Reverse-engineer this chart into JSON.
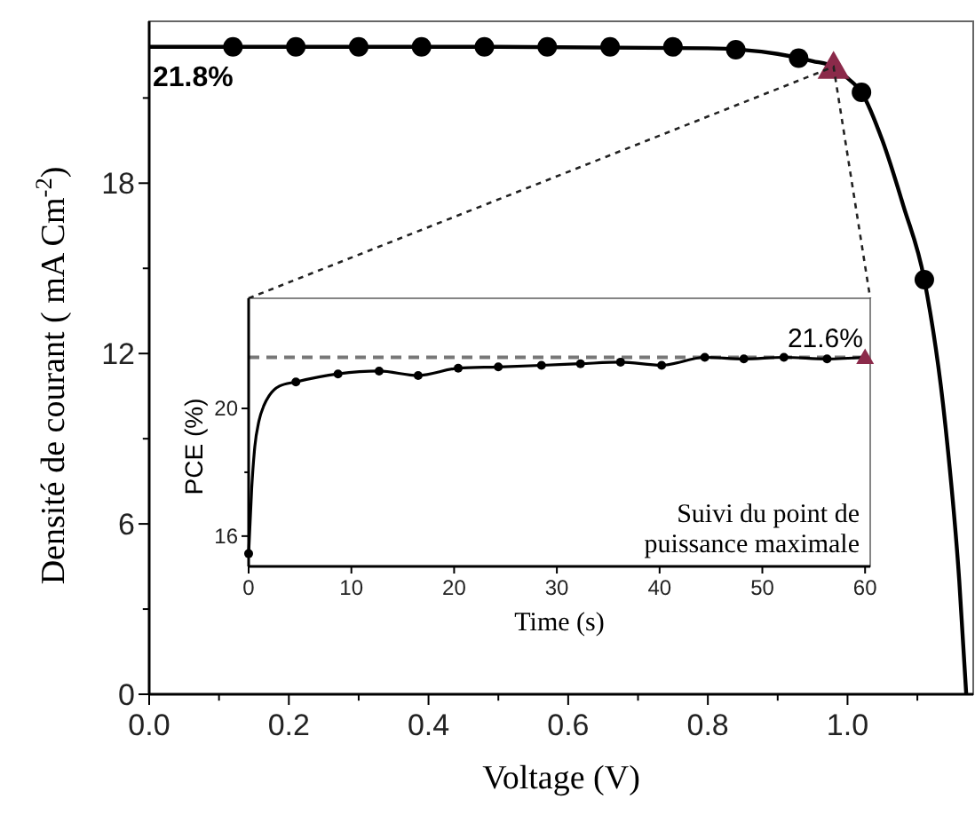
{
  "chart_data": [
    {
      "type": "line",
      "xlabel": "Voltage (V)",
      "ylabel": "Densité de courant ( mA Cm$^{-2}$)",
      "xlim": [
        0,
        1.18
      ],
      "ylim": [
        0,
        23.7
      ],
      "xticks": [
        {
          "value": 0,
          "label": "0.0"
        },
        {
          "value": 0.1,
          "label": null
        },
        {
          "value": 0.2,
          "label": "0.2"
        },
        {
          "value": 0.3,
          "label": null
        },
        {
          "value": 0.4,
          "label": "0.4"
        },
        {
          "value": 0.5,
          "label": null
        },
        {
          "value": 0.6,
          "label": "0.6"
        },
        {
          "value": 0.7,
          "label": null
        },
        {
          "value": 0.8,
          "label": "0.8"
        },
        {
          "value": 0.9,
          "label": null
        },
        {
          "value": 1,
          "label": "1.0"
        },
        {
          "value": 1.1,
          "label": null
        }
      ],
      "yticks": [
        0,
        {
          "value": 3,
          "label": null
        },
        6,
        {
          "value": 9,
          "label": null
        },
        12,
        {
          "value": 15,
          "label": null
        },
        18,
        {
          "value": 21,
          "label": null
        }
      ],
      "series": [
        {
          "color": "#000000",
          "x": [
            0,
            0.5,
            0.8,
            0.9,
            0.95,
            0.98,
            1.0,
            1.02,
            1.05,
            1.08,
            1.11,
            1.14,
            1.16,
            1.17
          ],
          "values": [
            22.8,
            22.8,
            22.75,
            22.55,
            22.3,
            22.1,
            21.7,
            21.2,
            19.5,
            17.2,
            14.6,
            9.5,
            4,
            0
          ]
        },
        {
          "type": "scatter",
          "marker": "circle",
          "color": "#000000",
          "x": [
            0.12,
            0.21,
            0.3,
            0.39,
            0.48,
            0.57,
            0.66,
            0.75,
            0.84,
            0.93,
            1.02,
            1.11
          ],
          "values": [
            22.8,
            22.8,
            22.8,
            22.8,
            22.8,
            22.8,
            22.8,
            22.8,
            22.7,
            22.4,
            21.2,
            14.6
          ]
        },
        {
          "type": "scatter",
          "marker": "triangle",
          "color": "#8b2a4a",
          "x": [
            0.98
          ],
          "values": [
            22.1
          ]
        }
      ],
      "annotations": [
        {
          "text": "21.8%",
          "x": 0,
          "y": 22.8
        }
      ]
    },
    {
      "type": "line",
      "xlabel": "Time (s)",
      "ylabel": "PCE (%)",
      "xlim": [
        0,
        60.5
      ],
      "ylim": [
        15.05,
        23.45
      ],
      "xticks": [
        0,
        10,
        20,
        30,
        40,
        50,
        60
      ],
      "yticks": [
        16,
        {
          "value": 18,
          "label": null
        },
        20
      ],
      "series": [
        {
          "color": "#000000",
          "x": [
            0,
            0.3,
            0.6,
            1,
            1.5,
            2,
            3,
            4.6,
            8.7,
            12.7,
            16.5,
            20.4,
            24.3,
            28.5,
            32.3,
            36.2,
            40.2,
            44.4,
            48.2,
            52.1,
            56.3,
            60
          ],
          "values": [
            15.45,
            17.5,
            18.8,
            19.6,
            20.1,
            20.4,
            20.7,
            20.83,
            21.08,
            21.17,
            21.03,
            21.26,
            21.3,
            21.35,
            21.4,
            21.45,
            21.35,
            21.6,
            21.55,
            21.6,
            21.55,
            21.6
          ]
        },
        {
          "type": "scatter",
          "marker": "circle",
          "color": "#000000",
          "x": [
            0,
            4.6,
            8.7,
            12.7,
            16.5,
            20.4,
            24.3,
            28.5,
            32.3,
            36.2,
            40.2,
            44.4,
            48.2,
            52.1,
            56.3
          ],
          "values": [
            15.45,
            20.83,
            21.08,
            21.17,
            21.03,
            21.26,
            21.3,
            21.35,
            21.4,
            21.45,
            21.35,
            21.6,
            21.55,
            21.6,
            21.55
          ]
        },
        {
          "type": "scatter",
          "marker": "triangle",
          "color": "#8b2a4a",
          "x": [
            60
          ],
          "values": [
            21.6
          ]
        }
      ],
      "ref_lines": [
        {
          "axis": "y",
          "value": 21.6,
          "label": "21.6%",
          "color": "#777777",
          "line_style": "dashed"
        }
      ],
      "annotations": [
        "Suivi du point de puissance maximale"
      ]
    }
  ]
}
